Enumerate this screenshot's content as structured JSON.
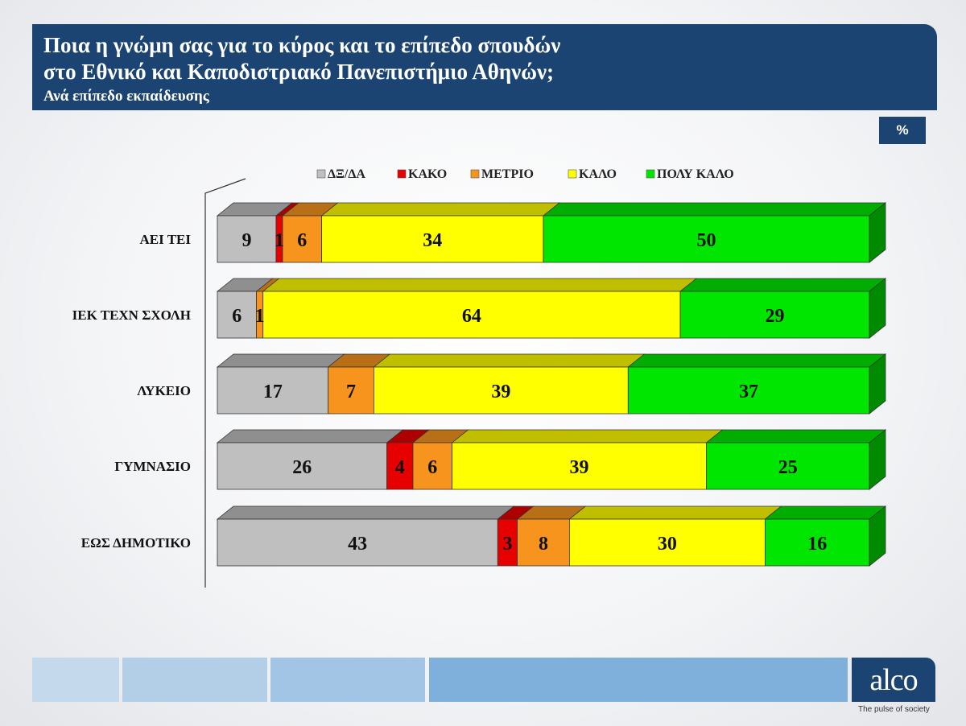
{
  "header": {
    "title_lines": [
      "Ποια η γνώμη σας για το κύρος και το επίπεδο σπουδών",
      "στο Εθνικό και Καποδιστριακό Πανεπιστήμιο Αθηνών;"
    ],
    "subtitle": "Ανά επίπεδο εκπαίδευσης"
  },
  "unit_label": "%",
  "chart_data": {
    "type": "bar",
    "orientation": "horizontal",
    "stacked": true,
    "style": "3d",
    "categories": [
      "ΑΕΙ ΤΕΙ",
      "ΙΕΚ ΤΕΧΝ ΣΧΟΛΗ",
      "ΛΥΚΕΙΟ",
      "ΓΥΜΝΑΣΙΟ",
      "ΕΩΣ ΔΗΜΟΤΙΚΟ"
    ],
    "series": [
      {
        "name": "ΔΞ/ΔΑ",
        "color": "#bfbfbf",
        "values": [
          9,
          6,
          17,
          26,
          43
        ]
      },
      {
        "name": "ΚΑΚΟ",
        "color": "#e60000",
        "values": [
          1,
          0,
          0,
          4,
          3
        ]
      },
      {
        "name": "ΜΕΤΡΙΟ",
        "color": "#f7941d",
        "values": [
          6,
          1,
          7,
          6,
          8
        ]
      },
      {
        "name": "ΚΑΛΟ",
        "color": "#ffff00",
        "values": [
          34,
          64,
          39,
          39,
          30
        ]
      },
      {
        "name": "ΠΟΛΥ ΚΑΛΟ",
        "color": "#00e600",
        "values": [
          50,
          29,
          37,
          25,
          16
        ]
      }
    ],
    "xlim": [
      0,
      100
    ],
    "legend_position": "top",
    "grid": false
  },
  "footer": {
    "logo_text": "alco",
    "tagline": "The pulse of society",
    "bar_colors": [
      "#c5d9ec",
      "#b3cfe8",
      "#a3c5e5",
      "#7fb0db"
    ]
  }
}
